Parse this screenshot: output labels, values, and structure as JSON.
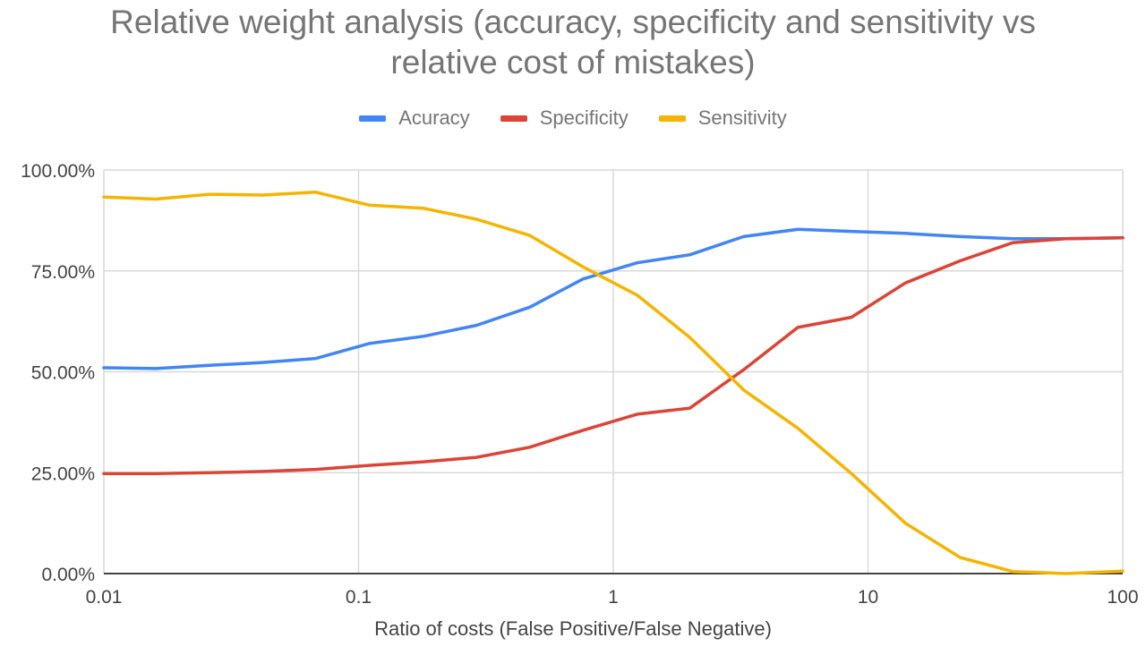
{
  "chart_data": {
    "type": "line",
    "title_lines": [
      "Relative weight analysis (accuracy, specificity and sensitivity vs",
      "relative cost of mistakes)"
    ],
    "xlabel": "Ratio of costs (False Positive/False Negative)",
    "ylabel": "",
    "x_scale": "log",
    "xlim": [
      0.01,
      100
    ],
    "ylim": [
      0,
      100
    ],
    "x_ticks": [
      0.01,
      0.1,
      1,
      10,
      100
    ],
    "x_tick_labels": [
      "0.01",
      "0.1",
      "1",
      "10",
      "100"
    ],
    "y_ticks": [
      0,
      25,
      50,
      75,
      100
    ],
    "y_tick_labels": [
      "0.00%",
      "25.00%",
      "50.00%",
      "75.00%",
      "100.00%"
    ],
    "grid": true,
    "legend_position": "top",
    "x": [
      0.01,
      0.016,
      0.026,
      0.042,
      0.068,
      0.11,
      0.18,
      0.29,
      0.47,
      0.76,
      1.24,
      2.0,
      3.25,
      5.3,
      8.6,
      14,
      23,
      37,
      60,
      100
    ],
    "series": [
      {
        "name": "Acuracy",
        "color": "#4285f4",
        "values": [
          51.0,
          50.8,
          51.6,
          52.3,
          53.3,
          57.0,
          58.8,
          61.5,
          66.0,
          73.0,
          77.0,
          79.0,
          83.5,
          85.3,
          84.8,
          84.3,
          83.5,
          83.0,
          83.0,
          83.2
        ]
      },
      {
        "name": "Specificity",
        "color": "#db4437",
        "values": [
          24.8,
          24.8,
          25.0,
          25.3,
          25.8,
          26.8,
          27.7,
          28.8,
          31.3,
          35.5,
          39.5,
          41.0,
          50.5,
          61.0,
          63.5,
          72.0,
          77.5,
          82.0,
          83.0,
          83.2
        ]
      },
      {
        "name": "Sensitivity",
        "color": "#f4b400",
        "values": [
          93.3,
          92.8,
          94.0,
          93.8,
          94.5,
          91.3,
          90.5,
          87.8,
          83.8,
          76.0,
          69.0,
          58.5,
          45.5,
          36.0,
          24.8,
          12.5,
          4.0,
          0.5,
          0.0,
          0.6
        ]
      }
    ]
  }
}
